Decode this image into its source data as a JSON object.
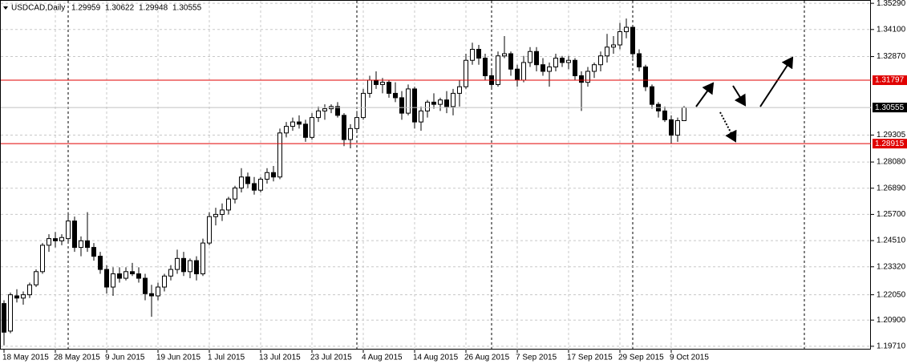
{
  "chart_data": {
    "type": "candlestick",
    "title": "USDCAD,Daily",
    "categories": [
      "18 May 2015",
      null,
      null,
      null,
      null,
      null,
      null,
      null,
      "28 May 2015",
      null,
      null,
      null,
      null,
      null,
      null,
      null,
      "9 Jun 2015",
      null,
      null,
      null,
      null,
      null,
      null,
      null,
      "19 Jun 2015",
      null,
      null,
      null,
      null,
      null,
      null,
      null,
      "1 Jul 2015",
      null,
      null,
      null,
      null,
      null,
      null,
      null,
      "13 Jul 2015",
      null,
      null,
      null,
      null,
      null,
      null,
      null,
      "23 Jul 2015",
      null,
      null,
      null,
      null,
      null,
      null,
      null,
      "4 Aug 2015",
      null,
      null,
      null,
      null,
      null,
      null,
      null,
      "14 Aug 2015",
      null,
      null,
      null,
      null,
      null,
      null,
      null,
      "26 Aug 2015",
      null,
      null,
      null,
      null,
      null,
      null,
      null,
      "7 Sep 2015",
      null,
      null,
      null,
      null,
      null,
      null,
      null,
      "17 Sep 2015",
      null,
      null,
      null,
      null,
      null,
      null,
      null,
      "29 Sep 2015",
      null,
      null,
      null,
      null,
      null,
      null,
      null,
      "9 Oct 2015",
      null,
      null
    ],
    "open": [
      1.2165,
      1.204,
      1.22,
      1.219,
      1.2205,
      1.225,
      1.231,
      1.243,
      1.246,
      1.245,
      1.246,
      1.254,
      1.242,
      1.245,
      1.242,
      1.238,
      1.232,
      1.224,
      1.23,
      1.228,
      1.231,
      1.23,
      1.228,
      1.221,
      1.22,
      1.224,
      1.229,
      1.232,
      1.237,
      1.231,
      1.236,
      1.23,
      1.244,
      1.256,
      1.257,
      1.259,
      1.264,
      1.269,
      1.274,
      1.271,
      1.268,
      1.273,
      1.276,
      1.274,
      1.294,
      1.297,
      1.299,
      1.298,
      1.292,
      1.301,
      1.304,
      1.305,
      1.306,
      1.302,
      1.291,
      1.296,
      1.301,
      1.312,
      1.318,
      1.316,
      1.317,
      1.312,
      1.31,
      1.303,
      1.314,
      1.299,
      1.304,
      1.308,
      1.307,
      1.309,
      1.306,
      1.312,
      1.315,
      1.327,
      1.332,
      1.328,
      1.32,
      1.316,
      1.329,
      1.33,
      1.323,
      1.318,
      1.326,
      1.331,
      1.325,
      1.322,
      1.324,
      1.328,
      1.326,
      1.327,
      1.32,
      1.317,
      1.322,
      1.325,
      1.329,
      1.333,
      1.334,
      1.34,
      1.342,
      1.33,
      1.324,
      1.315,
      1.307,
      1.304,
      1.3,
      1.293,
      1.29959
    ],
    "high": [
      1.218,
      1.2215,
      1.223,
      1.222,
      1.226,
      1.232,
      1.244,
      1.248,
      1.249,
      1.248,
      1.258,
      1.256,
      1.247,
      1.258,
      1.244,
      1.24,
      1.234,
      1.233,
      1.233,
      1.233,
      1.235,
      1.233,
      1.23,
      1.225,
      1.226,
      1.23,
      1.234,
      1.241,
      1.24,
      1.237,
      1.238,
      1.246,
      1.258,
      1.26,
      1.262,
      1.265,
      1.27,
      1.278,
      1.276,
      1.274,
      1.274,
      1.278,
      1.279,
      1.296,
      1.299,
      1.301,
      1.302,
      1.3,
      1.303,
      1.306,
      1.307,
      1.307,
      1.308,
      1.303,
      1.298,
      1.304,
      1.314,
      1.32,
      1.322,
      1.319,
      1.318,
      1.317,
      1.313,
      1.316,
      1.315,
      1.306,
      1.309,
      1.312,
      1.31,
      1.313,
      1.314,
      1.318,
      1.33,
      1.335,
      1.334,
      1.33,
      1.323,
      1.331,
      1.338,
      1.331,
      1.325,
      1.329,
      1.333,
      1.333,
      1.328,
      1.326,
      1.33,
      1.329,
      1.329,
      1.328,
      1.322,
      1.324,
      1.326,
      1.331,
      1.339,
      1.338,
      1.344,
      1.346,
      1.343,
      1.332,
      1.325,
      1.316,
      1.308,
      1.306,
      1.302,
      1.301,
      1.30622
    ],
    "low": [
      1.1975,
      1.203,
      1.217,
      1.216,
      1.219,
      1.224,
      1.23,
      1.24,
      1.242,
      1.243,
      1.244,
      1.24,
      1.238,
      1.24,
      1.236,
      1.23,
      1.221,
      1.22,
      1.226,
      1.227,
      1.229,
      1.226,
      1.218,
      1.2105,
      1.218,
      1.222,
      1.227,
      1.23,
      1.229,
      1.228,
      1.227,
      1.229,
      1.243,
      1.252,
      1.254,
      1.257,
      1.262,
      1.267,
      1.269,
      1.266,
      1.267,
      1.271,
      1.272,
      1.273,
      1.292,
      1.295,
      1.296,
      1.29,
      1.291,
      1.299,
      1.3,
      1.303,
      1.301,
      1.288,
      1.287,
      1.295,
      1.3,
      1.31,
      1.314,
      1.312,
      1.31,
      1.308,
      1.3,
      1.302,
      1.296,
      1.295,
      1.301,
      1.305,
      1.304,
      1.303,
      1.302,
      1.306,
      1.314,
      1.325,
      1.325,
      1.318,
      1.314,
      1.315,
      1.328,
      1.32,
      1.315,
      1.317,
      1.324,
      1.322,
      1.32,
      1.315,
      1.322,
      1.324,
      1.323,
      1.318,
      1.304,
      1.315,
      1.319,
      1.322,
      1.326,
      1.33,
      1.332,
      1.337,
      1.328,
      1.322,
      1.313,
      1.305,
      1.301,
      1.299,
      1.289,
      1.29,
      1.29948
    ],
    "close": [
      1.2035,
      1.2205,
      1.219,
      1.2205,
      1.225,
      1.231,
      1.243,
      1.246,
      1.245,
      1.2465,
      1.254,
      1.242,
      1.245,
      1.242,
      1.238,
      1.232,
      1.224,
      1.23,
      1.228,
      1.231,
      1.23,
      1.228,
      1.221,
      1.22,
      1.224,
      1.229,
      1.232,
      1.237,
      1.231,
      1.236,
      1.23,
      1.244,
      1.256,
      1.257,
      1.259,
      1.264,
      1.269,
      1.274,
      1.271,
      1.268,
      1.273,
      1.276,
      1.274,
      1.294,
      1.297,
      1.299,
      1.298,
      1.292,
      1.301,
      1.304,
      1.305,
      1.306,
      1.302,
      1.291,
      1.296,
      1.301,
      1.312,
      1.318,
      1.316,
      1.317,
      1.312,
      1.31,
      1.303,
      1.314,
      1.299,
      1.304,
      1.308,
      1.307,
      1.309,
      1.306,
      1.312,
      1.315,
      1.327,
      1.332,
      1.328,
      1.32,
      1.316,
      1.329,
      1.33,
      1.323,
      1.318,
      1.326,
      1.331,
      1.325,
      1.322,
      1.324,
      1.328,
      1.326,
      1.327,
      1.32,
      1.317,
      1.322,
      1.325,
      1.329,
      1.333,
      1.334,
      1.34,
      1.342,
      1.33,
      1.324,
      1.315,
      1.307,
      1.304,
      1.3,
      1.293,
      1.2996,
      1.30555
    ],
    "up_color": "#ffffff",
    "down_color": "#000000",
    "ylim": [
      1.1956,
      1.3544
    ],
    "yticks": [
      {
        "value": 1.3529,
        "label": "1.35290"
      },
      {
        "value": 1.341,
        "label": "1.34100"
      },
      {
        "value": 1.3287,
        "label": "1.32870"
      },
      1.29305,
      {
        "value": 1.2808,
        "label": "1.28080"
      },
      {
        "value": 1.2689,
        "label": "1.26890"
      },
      {
        "value": 1.257,
        "label": "1.25700"
      },
      {
        "value": 1.2451,
        "label": "1.24510"
      },
      {
        "value": 1.2332,
        "label": "1.23320"
      },
      {
        "value": 1.2205,
        "label": "1.22050"
      },
      {
        "value": 1.209,
        "label": "1.20900"
      },
      {
        "value": 1.1971,
        "label": "1.19710"
      }
    ],
    "levels": [
      {
        "value": 1.31797,
        "color": "#e00000"
      },
      {
        "value": 1.28915,
        "color": "#e00000"
      }
    ],
    "grid": true
  }
}
